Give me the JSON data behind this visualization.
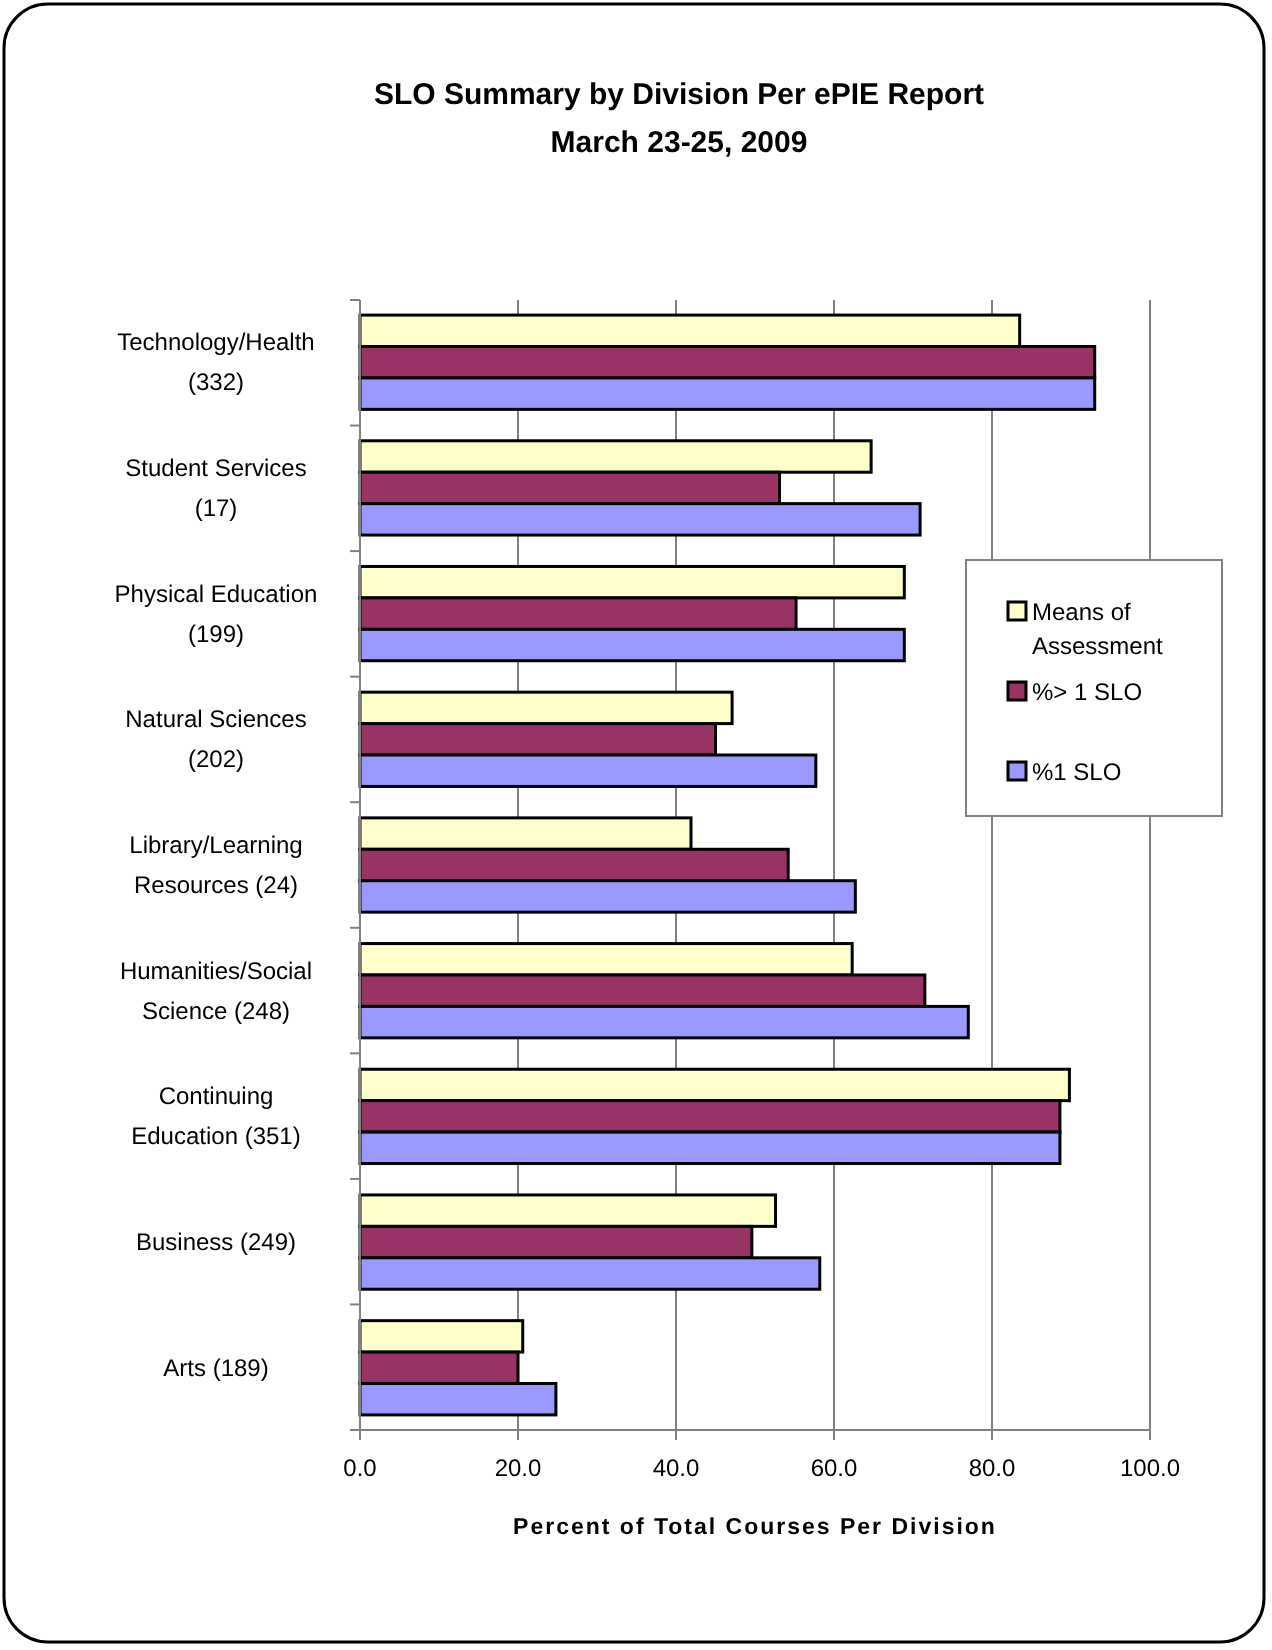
{
  "chart_data": {
    "type": "bar",
    "orientation": "horizontal",
    "title": "SLO Summary by Division Per ePIE Report\nMarch 23-25, 2009",
    "xlabel": "Percent of Total Courses Per Division",
    "categories": [
      "Technology/Health (332)",
      "Student Services (17)",
      "Physical Education (199)",
      "Natural Sciences (202)",
      "Library/Learning Resources (24)",
      "Humanities/Social Science (248)",
      "Continuing Education (351)",
      "Business (249)",
      "Arts (189)"
    ],
    "series": [
      {
        "name": "Means of Assessment",
        "color": "#ffffcc",
        "values": [
          83.5,
          64.7,
          68.9,
          47.1,
          41.9,
          62.3,
          89.8,
          52.6,
          20.6
        ]
      },
      {
        "name": "%> 1 SLO",
        "color": "#993366",
        "values": [
          93.0,
          53.1,
          55.2,
          45.0,
          54.2,
          71.5,
          88.6,
          49.6,
          20.0
        ]
      },
      {
        "name": "%1 SLO",
        "color": "#9999ff",
        "values": [
          93.0,
          70.9,
          68.9,
          57.7,
          62.7,
          77.0,
          88.6,
          58.2,
          24.8
        ]
      }
    ],
    "xlim": [
      0,
      100
    ],
    "xticks": [
      {
        "value": 0,
        "label": "0.0"
      },
      {
        "value": 20,
        "label": "20.0"
      },
      {
        "value": 40,
        "label": "40.0"
      },
      {
        "value": 60,
        "label": "60.0"
      },
      {
        "value": 80,
        "label": "80.0"
      },
      {
        "value": 100,
        "label": "100.0"
      }
    ],
    "grid": "x",
    "legend": "right"
  }
}
